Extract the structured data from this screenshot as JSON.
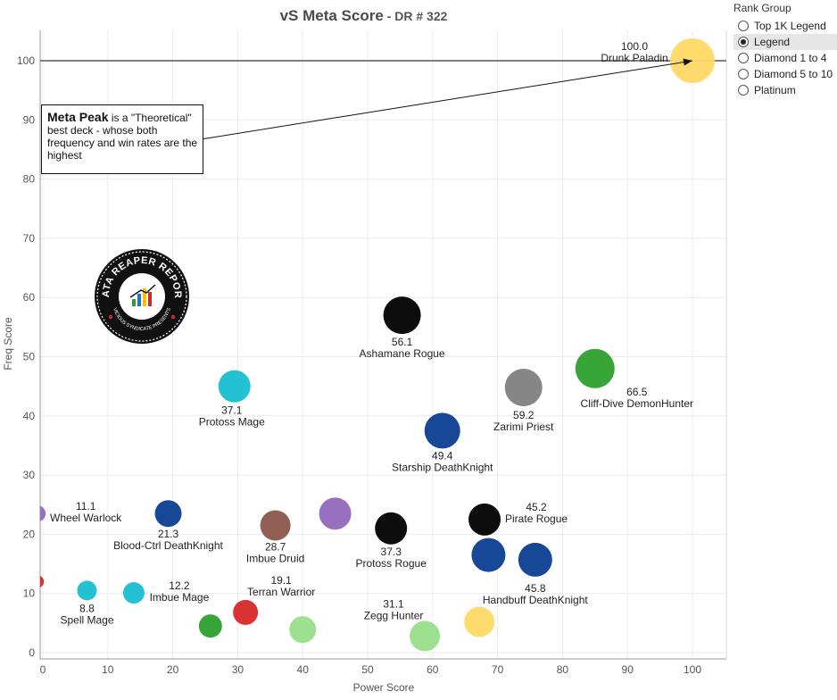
{
  "title": {
    "main": "vS Meta Score",
    "sub": " - DR # 322"
  },
  "legend": {
    "title": "Rank Group",
    "items": [
      {
        "label": "Top 1K Legend",
        "selected": false
      },
      {
        "label": "Legend",
        "selected": true
      },
      {
        "label": "Diamond 1 to 4",
        "selected": false
      },
      {
        "label": "Diamond 5 to 10",
        "selected": false
      },
      {
        "label": "Platinum",
        "selected": false
      }
    ]
  },
  "annotation": {
    "bold": "Meta Peak",
    "text": " is a \"Theoretical\" best deck - whose both frequency and win rates are the highest"
  },
  "logo": {
    "top_text": "DATA REAPER REPORT",
    "bottom_text": "VICIOUS SYNDICATE PRESENTS"
  },
  "chart_data": {
    "type": "scatter",
    "xlabel": "Power Score",
    "ylabel": "Freq Score",
    "xlim": [
      0,
      105
    ],
    "ylim": [
      -1,
      105
    ],
    "xticks": [
      0,
      10,
      20,
      30,
      40,
      50,
      60,
      70,
      80,
      90,
      100
    ],
    "yticks": [
      0,
      10,
      20,
      30,
      40,
      50,
      60,
      70,
      80,
      90,
      100
    ],
    "reference_line_y": 100,
    "points": [
      {
        "name": "Drunk Paladin",
        "score": "100.0",
        "x": 100,
        "y": 100,
        "color": "#ffd966",
        "r": 25
      },
      {
        "name": "Cliff-Dive DemonHunter",
        "score": "66.5",
        "x": 85,
        "y": 48,
        "color": "#2ca02c",
        "r": 22
      },
      {
        "name": "Zarimi Priest",
        "score": "59.2",
        "x": 74,
        "y": 44.8,
        "color": "#808080",
        "r": 21
      },
      {
        "name": "Ashamane Rogue",
        "score": "56.1",
        "x": 55.3,
        "y": 57,
        "color": "#000000",
        "r": 21
      },
      {
        "name": "Starship DeathKnight",
        "score": "49.4",
        "x": 61.5,
        "y": 37.5,
        "color": "#0b3d91",
        "r": 20
      },
      {
        "name": "Protoss Mage",
        "score": "37.1",
        "x": 29.5,
        "y": 45,
        "color": "#17becf",
        "r": 18
      },
      {
        "name": "Pirate Rogue",
        "score": "45.2",
        "x": 68,
        "y": 22.5,
        "color": "#000000",
        "r": 18
      },
      {
        "name": "Handbuff DeathKnight",
        "score": "45.8",
        "x": 75.8,
        "y": 15.7,
        "color": "#0b3d91",
        "r": 19
      },
      {
        "name": "",
        "score": "",
        "x": 68.6,
        "y": 16.5,
        "color": "#0b3d91",
        "r": 19
      },
      {
        "name": "Protoss Rogue",
        "score": "37.3",
        "x": 53.6,
        "y": 21,
        "color": "#000000",
        "r": 18
      },
      {
        "name": "",
        "score": "",
        "x": 45,
        "y": 23.5,
        "color": "#9467bd",
        "r": 18
      },
      {
        "name": "Imbue Druid",
        "score": "28.7",
        "x": 35.8,
        "y": 21.5,
        "color": "#8c564b",
        "r": 17
      },
      {
        "name": "Blood-Ctrl DeathKnight",
        "score": "21.3",
        "x": 19.3,
        "y": 23.5,
        "color": "#0b3d91",
        "r": 15
      },
      {
        "name": "Wheel Warlock",
        "score": "11.1",
        "x": -0.8,
        "y": 23.5,
        "color": "#9467bd",
        "r": 9
      },
      {
        "name": "Zegg Hunter",
        "score": "31.1",
        "x": 58.8,
        "y": 2.8,
        "color": "#98df8a",
        "r": 17
      },
      {
        "name": "",
        "score": "",
        "x": 67.2,
        "y": 5.2,
        "color": "#ffd966",
        "r": 17
      },
      {
        "name": "Terran Warrior",
        "score": "19.1",
        "x": 31.2,
        "y": 6.8,
        "color": "#d62728",
        "r": 14
      },
      {
        "name": "",
        "score": "",
        "x": 40,
        "y": 3.9,
        "color": "#98df8a",
        "r": 15
      },
      {
        "name": "",
        "score": "",
        "x": 25.8,
        "y": 4.5,
        "color": "#2ca02c",
        "r": 13
      },
      {
        "name": "Imbue Mage",
        "score": "12.2",
        "x": 14,
        "y": 10.1,
        "color": "#17becf",
        "r": 12
      },
      {
        "name": "Spell Mage",
        "score": "8.8",
        "x": 6.8,
        "y": 10.5,
        "color": "#17becf",
        "r": 11
      },
      {
        "name": "",
        "score": "",
        "x": -0.8,
        "y": 12,
        "color": "#d62728",
        "r": 7
      }
    ]
  }
}
